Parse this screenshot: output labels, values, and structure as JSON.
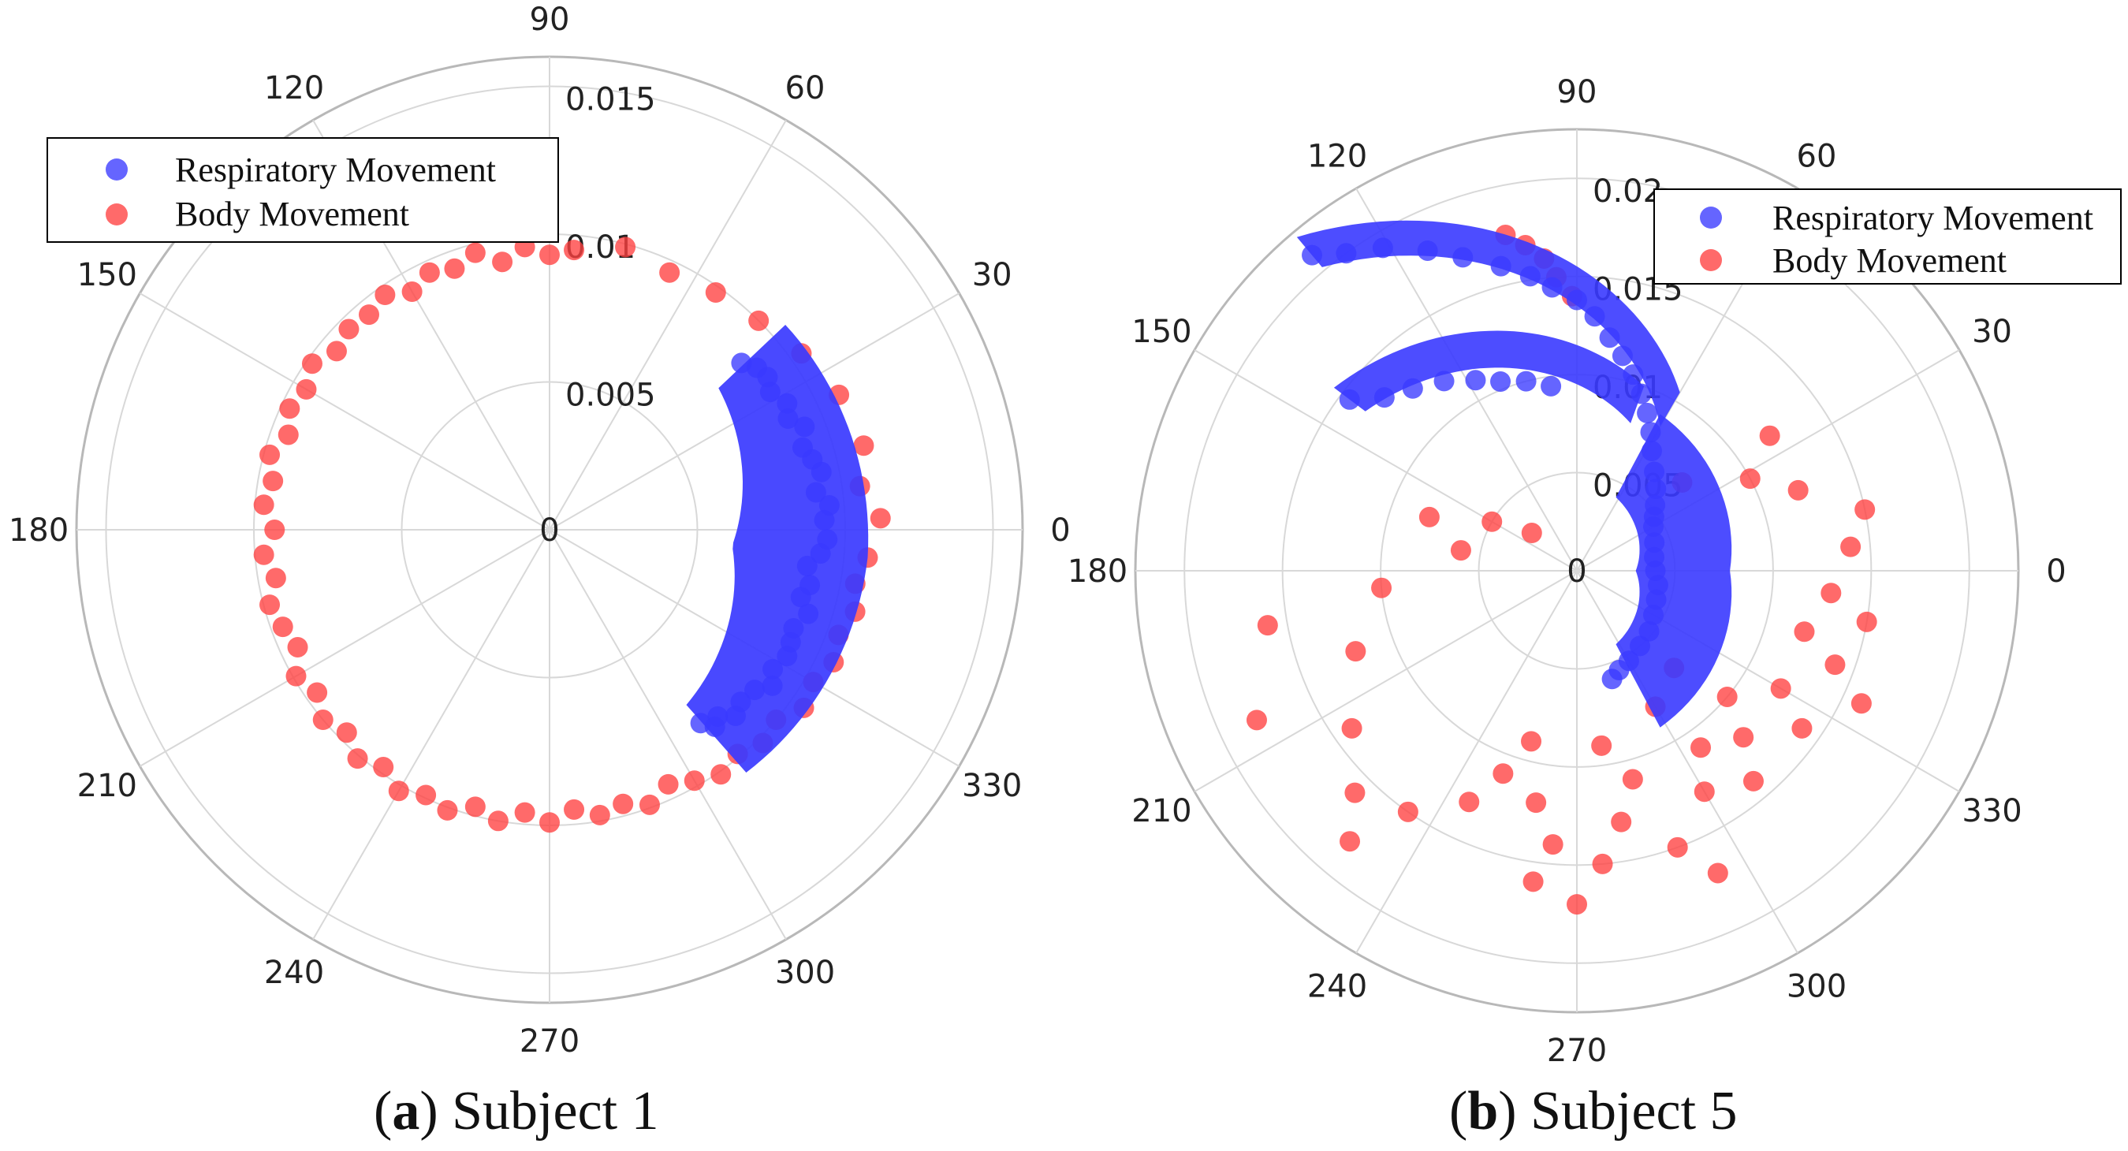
{
  "figure": {
    "panel_a_caption": {
      "open": "(",
      "letter": "a",
      "close": ")",
      "text": " Subject 1"
    },
    "panel_b_caption": {
      "open": "(",
      "letter": "b",
      "close": ")",
      "text": " Subject 5"
    }
  },
  "colors": {
    "respiratory": "#3a3aff",
    "body": "#ff4040",
    "grid": "#d8d8d8",
    "outer_ring": "#b8b8b8"
  },
  "chart_data": [
    {
      "type": "scatter",
      "coordinate_system": "polar",
      "title": "(a) Subject 1",
      "angular_ticks": [
        "0",
        "30",
        "60",
        "90",
        "120",
        "150",
        "180",
        "210",
        "240",
        "270",
        "300",
        "330"
      ],
      "radial_ticks": [
        "0",
        "0.005",
        "0.01",
        "0.015"
      ],
      "radial_range": [
        0,
        0.016
      ],
      "legend": {
        "placement": "top-left",
        "entries": [
          "Respiratory Movement",
          "Body Movement"
        ]
      },
      "series": [
        {
          "name": "Respiratory Movement",
          "shape": "crescent band, angle -52 to 41 deg, radius 0.0072 to 0.0105",
          "points": [
            [
              352,
              0.0088
            ],
            [
              355,
              0.0092
            ],
            [
              358,
              0.0094
            ],
            [
              2,
              0.0093
            ],
            [
              5,
              0.0095
            ],
            [
              8,
              0.0091
            ],
            [
              12,
              0.0094
            ],
            [
              15,
              0.0092
            ],
            [
              18,
              0.009
            ],
            [
              22,
              0.0093
            ],
            [
              25,
              0.0089
            ],
            [
              28,
              0.0091
            ],
            [
              32,
              0.0088
            ],
            [
              35,
              0.009
            ],
            [
              38,
              0.0089
            ],
            [
              41,
              0.0086
            ],
            [
              348,
              0.009
            ],
            [
              345,
              0.0088
            ],
            [
              342,
              0.0092
            ],
            [
              338,
              0.0089
            ],
            [
              335,
              0.009
            ],
            [
              332,
              0.0091
            ],
            [
              328,
              0.0089
            ],
            [
              325,
              0.0092
            ],
            [
              322,
              0.0088
            ],
            [
              318,
              0.0087
            ],
            [
              315,
              0.0089
            ],
            [
              312,
              0.0085
            ],
            [
              310,
              0.0087
            ],
            [
              308,
              0.0083
            ]
          ]
        },
        {
          "name": "Body Movement",
          "points": [
            [
              90,
              0.0093
            ],
            [
              95,
              0.0096
            ],
            [
              100,
              0.0092
            ],
            [
              105,
              0.0097
            ],
            [
              110,
              0.0094
            ],
            [
              115,
              0.0096
            ],
            [
              120,
              0.0093
            ],
            [
              125,
              0.0097
            ],
            [
              130,
              0.0095
            ],
            [
              135,
              0.0096
            ],
            [
              140,
              0.0094
            ],
            [
              145,
              0.0098
            ],
            [
              150,
              0.0095
            ],
            [
              155,
              0.0097
            ],
            [
              160,
              0.0094
            ],
            [
              165,
              0.0098
            ],
            [
              170,
              0.0095
            ],
            [
              175,
              0.0097
            ],
            [
              180,
              0.0093
            ],
            [
              185,
              0.0097
            ],
            [
              190,
              0.0094
            ],
            [
              195,
              0.0098
            ],
            [
              200,
              0.0096
            ],
            [
              205,
              0.0094
            ],
            [
              210,
              0.0099
            ],
            [
              215,
              0.0096
            ],
            [
              220,
              0.01
            ],
            [
              225,
              0.0097
            ],
            [
              230,
              0.0101
            ],
            [
              235,
              0.0098
            ],
            [
              240,
              0.0102
            ],
            [
              245,
              0.0099
            ],
            [
              250,
              0.0101
            ],
            [
              255,
              0.0097
            ],
            [
              260,
              0.01
            ],
            [
              265,
              0.0096
            ],
            [
              270,
              0.0099
            ],
            [
              275,
              0.0095
            ],
            [
              280,
              0.0098
            ],
            [
              285,
              0.0096
            ],
            [
              290,
              0.0099
            ],
            [
              295,
              0.0095
            ],
            [
              300,
              0.0098
            ],
            [
              305,
              0.0101
            ],
            [
              310,
              0.0099
            ],
            [
              315,
              0.0102
            ],
            [
              320,
              0.01
            ],
            [
              325,
              0.0105
            ],
            [
              330,
              0.0103
            ],
            [
              335,
              0.0106
            ],
            [
              340,
              0.0104
            ],
            [
              345,
              0.0107
            ],
            [
              350,
              0.0105
            ],
            [
              355,
              0.0108
            ],
            [
              2,
              0.0112
            ],
            [
              8,
              0.0106
            ],
            [
              15,
              0.011
            ],
            [
              25,
              0.0108
            ],
            [
              35,
              0.0104
            ],
            [
              45,
              0.01
            ],
            [
              55,
              0.0098
            ],
            [
              65,
              0.0096
            ],
            [
              75,
              0.0099
            ],
            [
              85,
              0.0095
            ]
          ]
        }
      ]
    },
    {
      "type": "scatter",
      "coordinate_system": "polar",
      "title": "(b) Subject 5",
      "angular_ticks": [
        "0",
        "30",
        "60",
        "90",
        "120",
        "150",
        "180",
        "210",
        "240",
        "270",
        "300",
        "330"
      ],
      "radial_ticks": [
        "0",
        "0.005",
        "0.01",
        "0.015",
        "0.02"
      ],
      "radial_range": [
        0,
        0.0225
      ],
      "legend": {
        "placement": "top-right",
        "entries": [
          "Respiratory Movement",
          "Body Movement"
        ]
      },
      "series": [
        {
          "name": "Respiratory Movement",
          "points": [
            [
              130,
              0.021
            ],
            [
              126,
              0.02
            ],
            [
              121,
              0.0192
            ],
            [
              115,
              0.018
            ],
            [
              110,
              0.017
            ],
            [
              104,
              0.016
            ],
            [
              99,
              0.0152
            ],
            [
              95,
              0.0145
            ],
            [
              90,
              0.0138
            ],
            [
              86,
              0.013
            ],
            [
              82,
              0.012
            ],
            [
              78,
              0.0112
            ],
            [
              74,
              0.0104
            ],
            [
              70,
              0.0096
            ],
            [
              66,
              0.0088
            ],
            [
              62,
              0.008
            ],
            [
              58,
              0.0072
            ],
            [
              52,
              0.0064
            ],
            [
              46,
              0.0058
            ],
            [
              40,
              0.0052
            ],
            [
              35,
              0.0048
            ],
            [
              30,
              0.0045
            ],
            [
              20,
              0.0042
            ],
            [
              10,
              0.004
            ],
            [
              0,
              0.004
            ],
            [
              350,
              0.0042
            ],
            [
              340,
              0.0043
            ],
            [
              330,
              0.0045
            ],
            [
              320,
              0.0048
            ],
            [
              310,
              0.005
            ],
            [
              300,
              0.0053
            ],
            [
              293,
              0.0055
            ],
            [
              288,
              0.0058
            ],
            [
              143,
              0.0145
            ],
            [
              138,
              0.0132
            ],
            [
              132,
              0.0125
            ],
            [
              125,
              0.0118
            ],
            [
              118,
              0.011
            ],
            [
              112,
              0.0104
            ],
            [
              105,
              0.01
            ],
            [
              98,
              0.0095
            ]
          ]
        },
        {
          "name": "Body Movement",
          "points": [
            [
              96,
              0.016
            ],
            [
              99,
              0.0168
            ],
            [
              102,
              0.0175
            ],
            [
              94,
              0.015
            ],
            [
              91,
              0.014
            ],
            [
              170,
              0.006
            ],
            [
              185,
              0.01
            ],
            [
              200,
              0.012
            ],
            [
              215,
              0.014
            ],
            [
              225,
              0.016
            ],
            [
              235,
              0.015
            ],
            [
              245,
              0.013
            ],
            [
              250,
              0.011
            ],
            [
              255,
              0.009
            ],
            [
              260,
              0.012
            ],
            [
              265,
              0.014
            ],
            [
              270,
              0.017
            ],
            [
              275,
              0.015
            ],
            [
              280,
              0.013
            ],
            [
              285,
              0.011
            ],
            [
              290,
              0.015
            ],
            [
              295,
              0.017
            ],
            [
              300,
              0.013
            ],
            [
              305,
              0.011
            ],
            [
              310,
              0.014
            ],
            [
              315,
              0.012
            ],
            [
              320,
              0.01
            ],
            [
              325,
              0.014
            ],
            [
              330,
              0.012
            ],
            [
              335,
              0.016
            ],
            [
              340,
              0.014
            ],
            [
              345,
              0.012
            ],
            [
              350,
              0.015
            ],
            [
              355,
              0.013
            ],
            [
              5,
              0.014
            ],
            [
              12,
              0.015
            ],
            [
              20,
              0.012
            ],
            [
              28,
              0.01
            ],
            [
              35,
              0.012
            ],
            [
              40,
              0.007
            ],
            [
              160,
              0.008
            ],
            [
              150,
              0.005
            ],
            [
              140,
              0.003
            ],
            [
              190,
              0.016
            ],
            [
              205,
              0.018
            ],
            [
              230,
              0.018
            ],
            [
              262,
              0.016
            ],
            [
              278,
              0.009
            ],
            [
              300,
              0.008
            ],
            [
              315,
              0.007
            ]
          ]
        }
      ]
    }
  ],
  "legend_a": {
    "respiratory_label": "Respiratory Movement",
    "body_label": "Body Movement"
  },
  "legend_b": {
    "respiratory_label": "Respiratory Movement",
    "body_label": "Body Movement"
  }
}
